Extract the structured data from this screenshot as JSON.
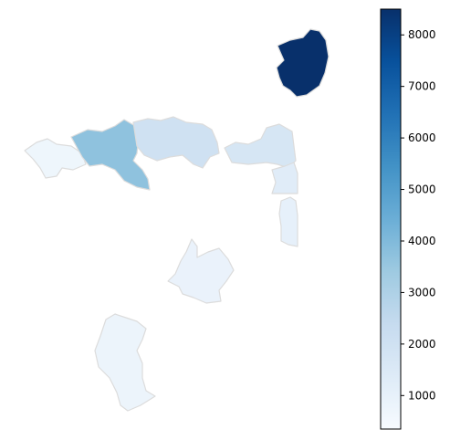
{
  "chart_data": {
    "type": "choropleth",
    "title": "",
    "colormap": "Blues",
    "value_range": [
      350,
      8500
    ],
    "colorbar_ticks": [
      1000,
      2000,
      3000,
      4000,
      5000,
      6000,
      7000,
      8000
    ],
    "regions": [
      {
        "name": "",
        "value": 8500
      },
      {
        "name": "",
        "value": 700
      },
      {
        "name": "",
        "value": 3700
      },
      {
        "name": "",
        "value": 2000
      },
      {
        "name": "",
        "value": 1700
      },
      {
        "name": "",
        "value": 1300
      },
      {
        "name": "",
        "value": 1050
      },
      {
        "name": "",
        "value": 900
      },
      {
        "name": "",
        "value": 800
      },
      {
        "name": "",
        "value": 1500
      }
    ]
  }
}
